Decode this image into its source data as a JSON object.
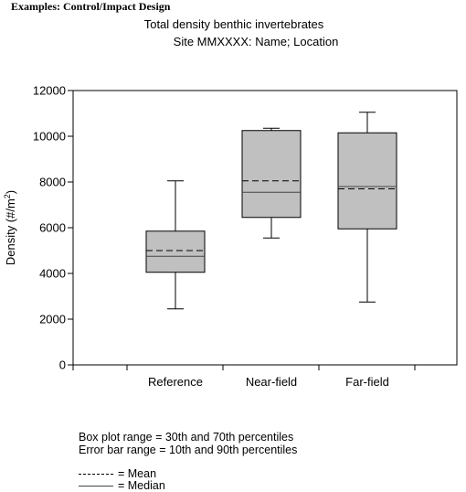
{
  "heading": "Examples: Control/Impact Design",
  "notes": {
    "line1": "Box plot range = 30th and 70th percentiles",
    "line2": "Error bar range = 10th and 90th percentiles"
  },
  "legend": {
    "mean_label": "= Mean",
    "median_label": "= Median"
  },
  "colors": {
    "box_fill": "#c0c0c0",
    "stroke": "#000000",
    "median": "#444444"
  },
  "chart_data": {
    "type": "boxplot",
    "title": "Total density benthic invertebrates",
    "subtitle": "Site MMXXXX: Name; Location",
    "xlabel": "",
    "ylabel": "Density (#/m²)",
    "ylim": [
      0,
      12000
    ],
    "yticks": [
      0,
      2000,
      4000,
      6000,
      8000,
      10000,
      12000
    ],
    "ytick_labels": [
      "0",
      "2000",
      "4000",
      "6000",
      "8000",
      "10000",
      "12000"
    ],
    "categories": [
      "Reference",
      "Near-field",
      "Far-field"
    ],
    "boxes": [
      {
        "category": "Reference",
        "whisker_low": 2450,
        "box_low": 4050,
        "median": 4750,
        "mean": 5000,
        "box_high": 5850,
        "whisker_high": 8050
      },
      {
        "category": "Near-field",
        "whisker_low": 5550,
        "box_low": 6450,
        "median": 7550,
        "mean": 8050,
        "box_high": 10250,
        "whisker_high": 10350
      },
      {
        "category": "Far-field",
        "whisker_low": 2750,
        "box_low": 5950,
        "median": 7800,
        "mean": 7700,
        "box_high": 10150,
        "whisker_high": 11050
      }
    ],
    "grid": false,
    "legend": "none"
  }
}
